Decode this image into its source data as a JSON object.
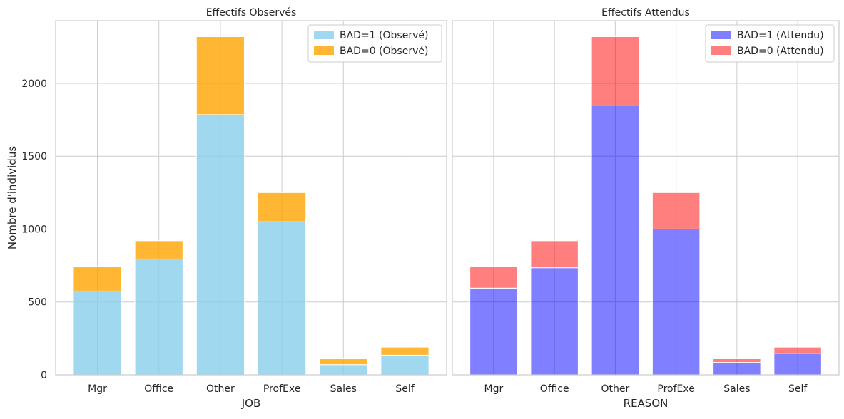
{
  "chart_data": [
    {
      "type": "bar",
      "stacked": true,
      "title": "Effectifs Observés",
      "xlabel": "JOB",
      "ylabel": "Nombre d'individus",
      "categories": [
        "Mgr",
        "Office",
        "Other",
        "ProfExe",
        "Sales",
        "Self"
      ],
      "ylim": [
        0,
        2430
      ],
      "yticks": [
        0,
        500,
        1000,
        1500,
        2000
      ],
      "grid": true,
      "legend_position": "top-right",
      "series": [
        {
          "name": "BAD=1 (Observé)",
          "color": "#87ceeb",
          "values": [
            575,
            795,
            1785,
            1050,
            70,
            135
          ]
        },
        {
          "name": "BAD=0 (Observé)",
          "color": "#ffa500",
          "values": [
            170,
            125,
            535,
            200,
            40,
            55
          ]
        }
      ]
    },
    {
      "type": "bar",
      "stacked": true,
      "title": "Effectifs Attendus",
      "xlabel": "REASON",
      "ylabel": "",
      "categories": [
        "Mgr",
        "Office",
        "Other",
        "ProfExe",
        "Sales",
        "Self"
      ],
      "ylim": [
        0,
        2430
      ],
      "yticks": [
        0,
        500,
        1000,
        1500,
        2000
      ],
      "grid": true,
      "legend_position": "top-right",
      "series": [
        {
          "name": "BAD=1 (Attendu)",
          "color": "#0000ff",
          "values": [
            595,
            735,
            1850,
            1000,
            85,
            148
          ]
        },
        {
          "name": "BAD=0 (Attendu)",
          "color": "#ff0000",
          "values": [
            150,
            185,
            470,
            250,
            25,
            42
          ]
        }
      ]
    }
  ]
}
